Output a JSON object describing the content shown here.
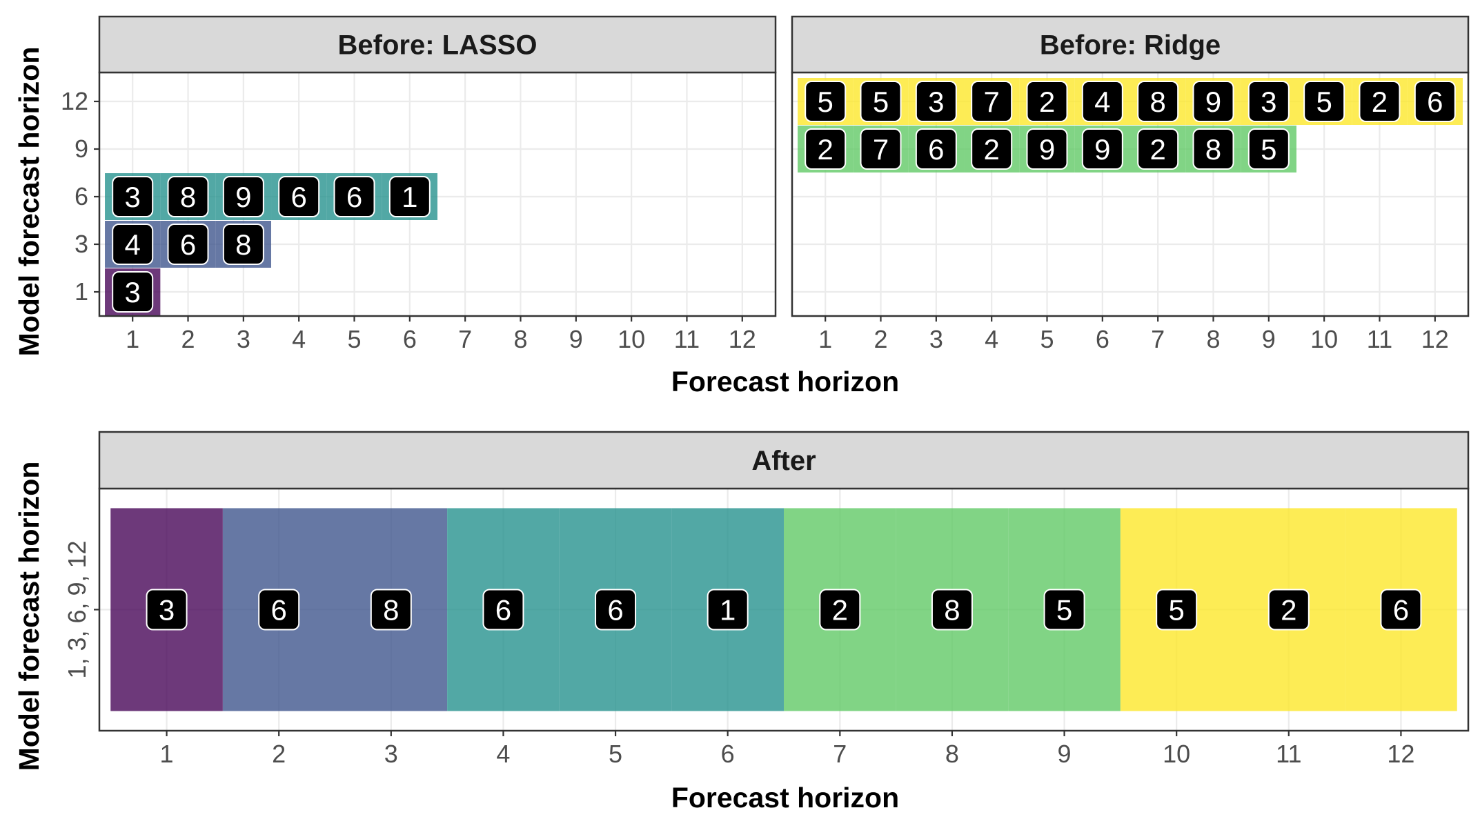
{
  "colors": {
    "h1": "#440154",
    "h3": "#3B528B",
    "h6": "#21908C",
    "h9": "#5DC863",
    "h12": "#FDE725",
    "label_bg": "#000000",
    "label_text": "#ffffff",
    "strip_bg": "#d9d9d9",
    "grid": "#ebebeb"
  },
  "chart_data": [
    {
      "type": "heatmap",
      "title": "Before: LASSO",
      "xlabel": "Forecast horizon",
      "ylabel": "Model forecast horizon",
      "x_ticks": [
        "1",
        "2",
        "3",
        "4",
        "5",
        "6",
        "7",
        "8",
        "9",
        "10",
        "11",
        "12"
      ],
      "y_ticks": [
        "1",
        "3",
        "6",
        "9",
        "12"
      ],
      "cells": [
        {
          "x": 1,
          "y": "1",
          "label": "3"
        },
        {
          "x": 1,
          "y": "3",
          "label": "4"
        },
        {
          "x": 2,
          "y": "3",
          "label": "6"
        },
        {
          "x": 3,
          "y": "3",
          "label": "8"
        },
        {
          "x": 1,
          "y": "6",
          "label": "3"
        },
        {
          "x": 2,
          "y": "6",
          "label": "8"
        },
        {
          "x": 3,
          "y": "6",
          "label": "9"
        },
        {
          "x": 4,
          "y": "6",
          "label": "6"
        },
        {
          "x": 5,
          "y": "6",
          "label": "6"
        },
        {
          "x": 6,
          "y": "6",
          "label": "1"
        }
      ]
    },
    {
      "type": "heatmap",
      "title": "Before: Ridge",
      "xlabel": "Forecast horizon",
      "ylabel": "Model forecast horizon",
      "x_ticks": [
        "1",
        "2",
        "3",
        "4",
        "5",
        "6",
        "7",
        "8",
        "9",
        "10",
        "11",
        "12"
      ],
      "y_ticks": [
        "1",
        "3",
        "6",
        "9",
        "12"
      ],
      "cells": [
        {
          "x": 1,
          "y": "9",
          "label": "2"
        },
        {
          "x": 2,
          "y": "9",
          "label": "7"
        },
        {
          "x": 3,
          "y": "9",
          "label": "6"
        },
        {
          "x": 4,
          "y": "9",
          "label": "2"
        },
        {
          "x": 5,
          "y": "9",
          "label": "9"
        },
        {
          "x": 6,
          "y": "9",
          "label": "9"
        },
        {
          "x": 7,
          "y": "9",
          "label": "2"
        },
        {
          "x": 8,
          "y": "9",
          "label": "8"
        },
        {
          "x": 9,
          "y": "9",
          "label": "5"
        },
        {
          "x": 1,
          "y": "12",
          "label": "5"
        },
        {
          "x": 2,
          "y": "12",
          "label": "5"
        },
        {
          "x": 3,
          "y": "12",
          "label": "3"
        },
        {
          "x": 4,
          "y": "12",
          "label": "7"
        },
        {
          "x": 5,
          "y": "12",
          "label": "2"
        },
        {
          "x": 6,
          "y": "12",
          "label": "4"
        },
        {
          "x": 7,
          "y": "12",
          "label": "8"
        },
        {
          "x": 8,
          "y": "12",
          "label": "9"
        },
        {
          "x": 9,
          "y": "12",
          "label": "3"
        },
        {
          "x": 10,
          "y": "12",
          "label": "5"
        },
        {
          "x": 11,
          "y": "12",
          "label": "2"
        },
        {
          "x": 12,
          "y": "12",
          "label": "6"
        }
      ]
    },
    {
      "type": "heatmap",
      "title": "After",
      "xlabel": "Forecast horizon",
      "ylabel": "Model forecast horizon",
      "x_ticks": [
        "1",
        "2",
        "3",
        "4",
        "5",
        "6",
        "7",
        "8",
        "9",
        "10",
        "11",
        "12"
      ],
      "y_ticks": [
        "1, 3, 6, 9, 12"
      ],
      "cells": [
        {
          "x": 1,
          "group": "1",
          "label": "3"
        },
        {
          "x": 2,
          "group": "3",
          "label": "6"
        },
        {
          "x": 3,
          "group": "3",
          "label": "8"
        },
        {
          "x": 4,
          "group": "6",
          "label": "6"
        },
        {
          "x": 5,
          "group": "6",
          "label": "6"
        },
        {
          "x": 6,
          "group": "6",
          "label": "1"
        },
        {
          "x": 7,
          "group": "9",
          "label": "2"
        },
        {
          "x": 8,
          "group": "9",
          "label": "8"
        },
        {
          "x": 9,
          "group": "9",
          "label": "5"
        },
        {
          "x": 10,
          "group": "12",
          "label": "5"
        },
        {
          "x": 11,
          "group": "12",
          "label": "2"
        },
        {
          "x": 12,
          "group": "12",
          "label": "6"
        }
      ]
    }
  ]
}
